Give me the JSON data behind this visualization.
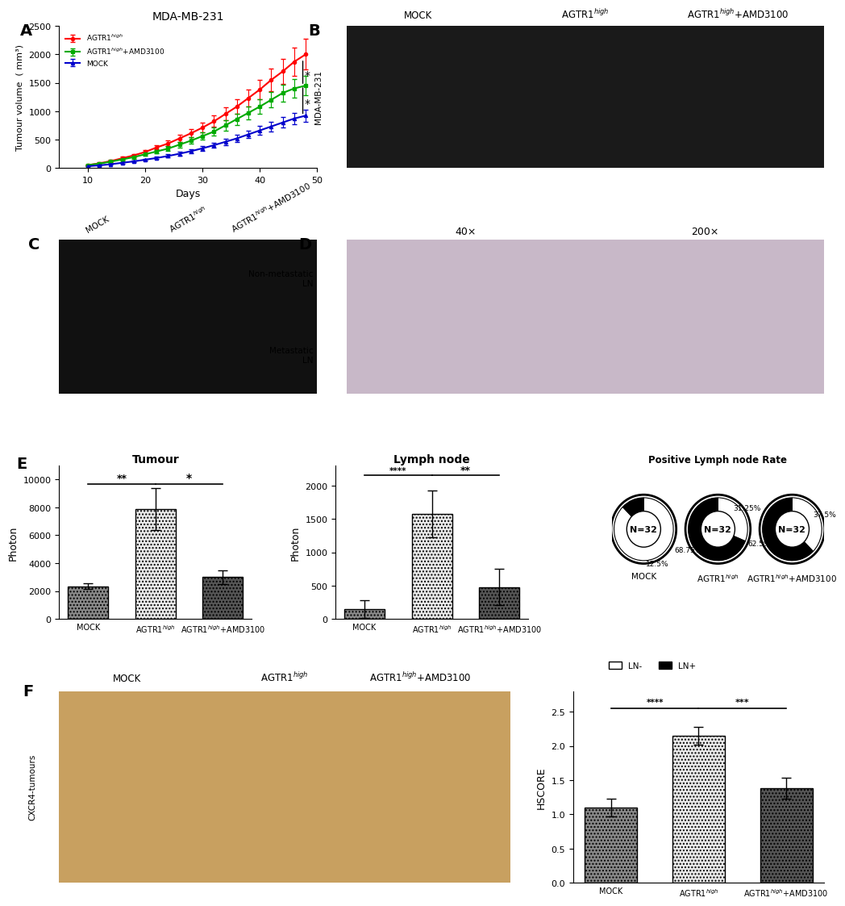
{
  "title_A": "MDA-MB-231",
  "days": [
    10,
    12,
    14,
    16,
    18,
    20,
    22,
    24,
    26,
    28,
    30,
    32,
    34,
    36,
    38,
    40,
    42,
    44,
    46,
    48
  ],
  "agtr1_high": [
    50,
    80,
    120,
    170,
    220,
    280,
    360,
    430,
    520,
    610,
    710,
    820,
    950,
    1080,
    1230,
    1380,
    1550,
    1700,
    1870,
    2000
  ],
  "agtr1_amd": [
    50,
    75,
    110,
    150,
    190,
    240,
    290,
    340,
    410,
    480,
    560,
    640,
    750,
    860,
    970,
    1080,
    1200,
    1320,
    1400,
    1450
  ],
  "mock": [
    30,
    45,
    65,
    90,
    115,
    145,
    175,
    210,
    250,
    295,
    345,
    400,
    460,
    520,
    590,
    660,
    730,
    800,
    870,
    920
  ],
  "agtr1_high_err": [
    10,
    15,
    20,
    25,
    30,
    35,
    40,
    50,
    60,
    70,
    85,
    100,
    115,
    130,
    155,
    175,
    200,
    220,
    250,
    270
  ],
  "agtr1_amd_err": [
    10,
    13,
    17,
    22,
    27,
    32,
    37,
    42,
    50,
    58,
    67,
    76,
    88,
    100,
    112,
    125,
    138,
    150,
    165,
    175
  ],
  "mock_err": [
    5,
    8,
    10,
    13,
    16,
    19,
    23,
    27,
    31,
    36,
    41,
    47,
    54,
    61,
    69,
    77,
    86,
    94,
    103,
    112
  ],
  "line_colors": [
    "#FF0000",
    "#00AA00",
    "#0000CC"
  ],
  "line_labels": [
    "AGTR1$^{high}$",
    "AGTR1$^{high}$+AMD3100",
    "MOCK"
  ],
  "tumour_bars": [
    2350,
    7900,
    3000
  ],
  "tumour_err": [
    200,
    1500,
    500
  ],
  "lymph_bars": [
    150,
    1580,
    480
  ],
  "lymph_err": [
    130,
    350,
    270
  ],
  "bar_labels": [
    "MOCK",
    "AGTR1$^{high}$",
    "AGTR1$^{high}$+AMD3100"
  ],
  "pie1_sizes": [
    87.5,
    12.5
  ],
  "pie2_sizes": [
    31.25,
    68.75
  ],
  "pie3_sizes": [
    37.5,
    62.5
  ],
  "pie_labels1_white": "12.5%",
  "pie_labels1_black": "",
  "pie_labels2_white": "31.25%",
  "pie_labels2_black": "68.75%",
  "pie_labels3_white": "37.5%",
  "pie_labels3_black": "62.5%",
  "pie_titles": [
    "MOCK",
    "AGTR1$^{high}$",
    "AGTR1$^{high}$+AMD3100"
  ],
  "pie_n": "N=32",
  "pie_colors": [
    "white",
    "black"
  ],
  "hscore_bars": [
    1.1,
    2.15,
    1.38
  ],
  "hscore_err": [
    0.13,
    0.13,
    0.15
  ],
  "hscore_labels": [
    "MOCK",
    "AGTR1$^{high}$",
    "AGTR1$^{high}$+AMD3100"
  ],
  "hatch_dark": "....",
  "hatch_light": "....",
  "bg_color": "#FFFFFF"
}
